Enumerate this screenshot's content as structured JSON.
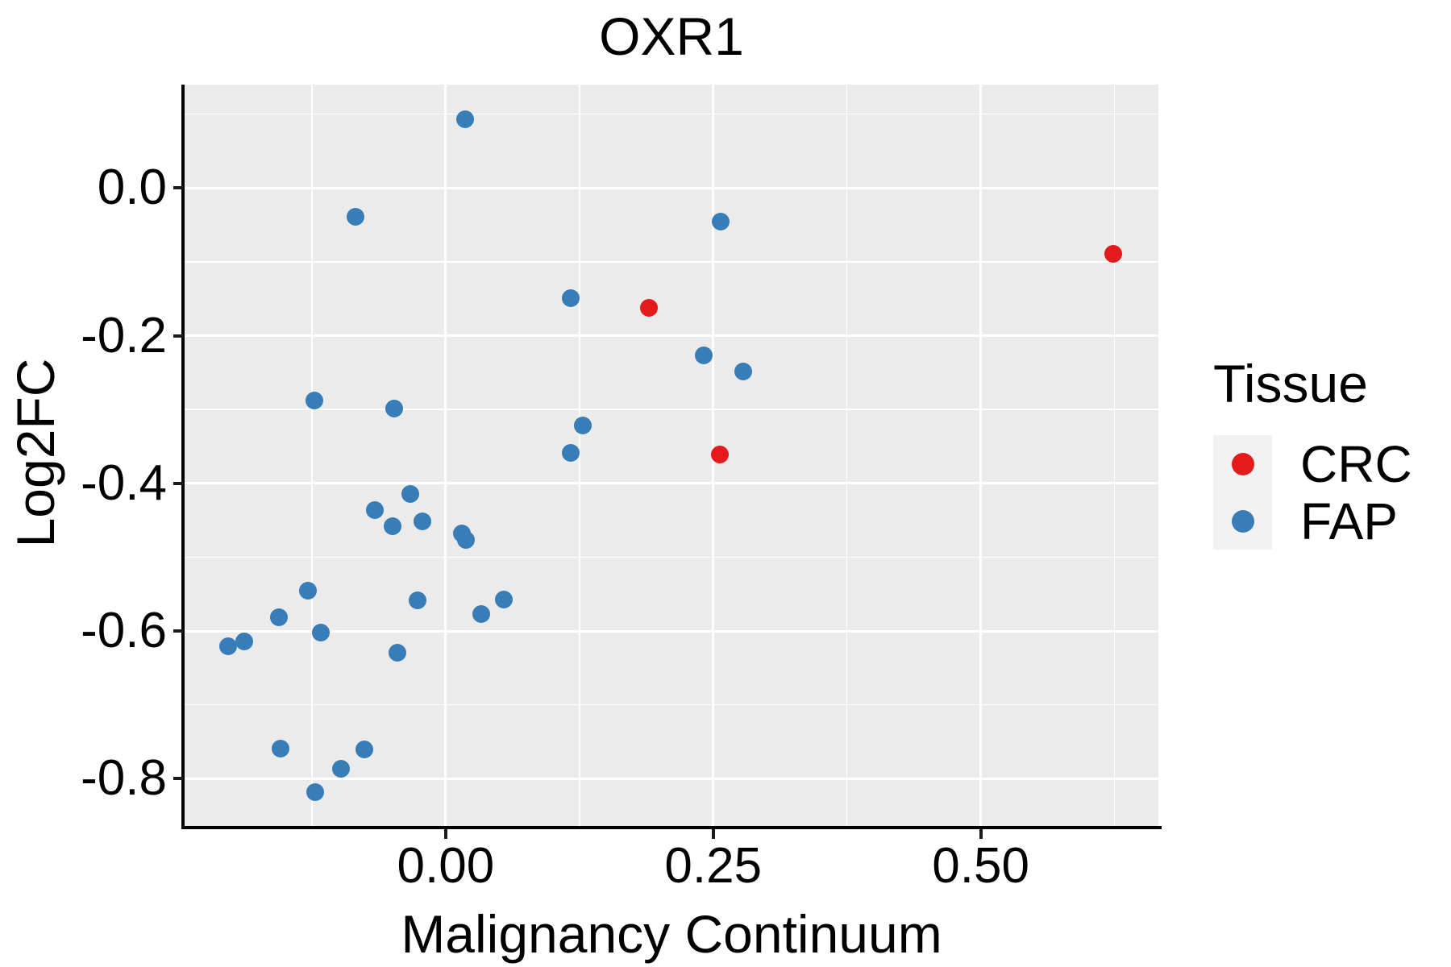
{
  "page": {
    "background": "#FFFFFF"
  },
  "chart_data": {
    "type": "scatter",
    "title": "OXR1",
    "xlabel": "Malignancy Continuum",
    "ylabel": "Log2FC",
    "panel": {
      "bg": "#EBEBEB",
      "grid_color": "#FFFFFF"
    },
    "x_axis": {
      "range": [
        -0.244,
        0.666
      ],
      "ticks": [
        {
          "value": 0.0,
          "label": "0.00"
        },
        {
          "value": 0.25,
          "label": "0.25"
        },
        {
          "value": 0.5,
          "label": "0.50"
        }
      ],
      "minor": [
        -0.125,
        0.125,
        0.375,
        0.625
      ]
    },
    "y_axis": {
      "range": [
        -0.864,
        0.14
      ],
      "ticks": [
        {
          "value": 0.0,
          "label": "0.0"
        },
        {
          "value": -0.2,
          "label": "-0.2"
        },
        {
          "value": -0.4,
          "label": "-0.4"
        },
        {
          "value": -0.6,
          "label": "-0.6"
        },
        {
          "value": -0.8,
          "label": "-0.8"
        }
      ],
      "minor": [
        0.1,
        -0.1,
        -0.3,
        -0.5,
        -0.7
      ]
    },
    "legend": {
      "title": "Tissue",
      "position": "right",
      "key_bg": "#F2F2F2",
      "entries": [
        {
          "label": "CRC",
          "color": "#E41A1C"
        },
        {
          "label": "FAP",
          "color": "#377EB8"
        }
      ]
    },
    "series": [
      {
        "name": "CRC",
        "color": "#E41A1C",
        "points": [
          [
            0.19,
            -0.162
          ],
          [
            0.256,
            -0.361
          ],
          [
            0.624,
            -0.089
          ]
        ]
      },
      {
        "name": "FAP",
        "color": "#377EB8",
        "points": [
          [
            0.018,
            0.093
          ],
          [
            -0.084,
            -0.039
          ],
          [
            0.257,
            -0.045
          ],
          [
            0.117,
            -0.149
          ],
          [
            0.241,
            -0.227
          ],
          [
            0.278,
            -0.249
          ],
          [
            -0.123,
            -0.288
          ],
          [
            -0.048,
            -0.299
          ],
          [
            0.128,
            -0.322
          ],
          [
            0.117,
            -0.359
          ],
          [
            -0.033,
            -0.414
          ],
          [
            -0.066,
            -0.436
          ],
          [
            -0.05,
            -0.458
          ],
          [
            -0.022,
            -0.451
          ],
          [
            0.015,
            -0.468
          ],
          [
            0.019,
            -0.477
          ],
          [
            -0.129,
            -0.545
          ],
          [
            -0.026,
            -0.558
          ],
          [
            0.054,
            -0.557
          ],
          [
            -0.156,
            -0.581
          ],
          [
            0.033,
            -0.577
          ],
          [
            -0.117,
            -0.602
          ],
          [
            -0.203,
            -0.621
          ],
          [
            -0.188,
            -0.614
          ],
          [
            -0.045,
            -0.629
          ],
          [
            -0.154,
            -0.759
          ],
          [
            -0.076,
            -0.76
          ],
          [
            -0.098,
            -0.786
          ],
          [
            -0.122,
            -0.818
          ]
        ]
      }
    ]
  }
}
